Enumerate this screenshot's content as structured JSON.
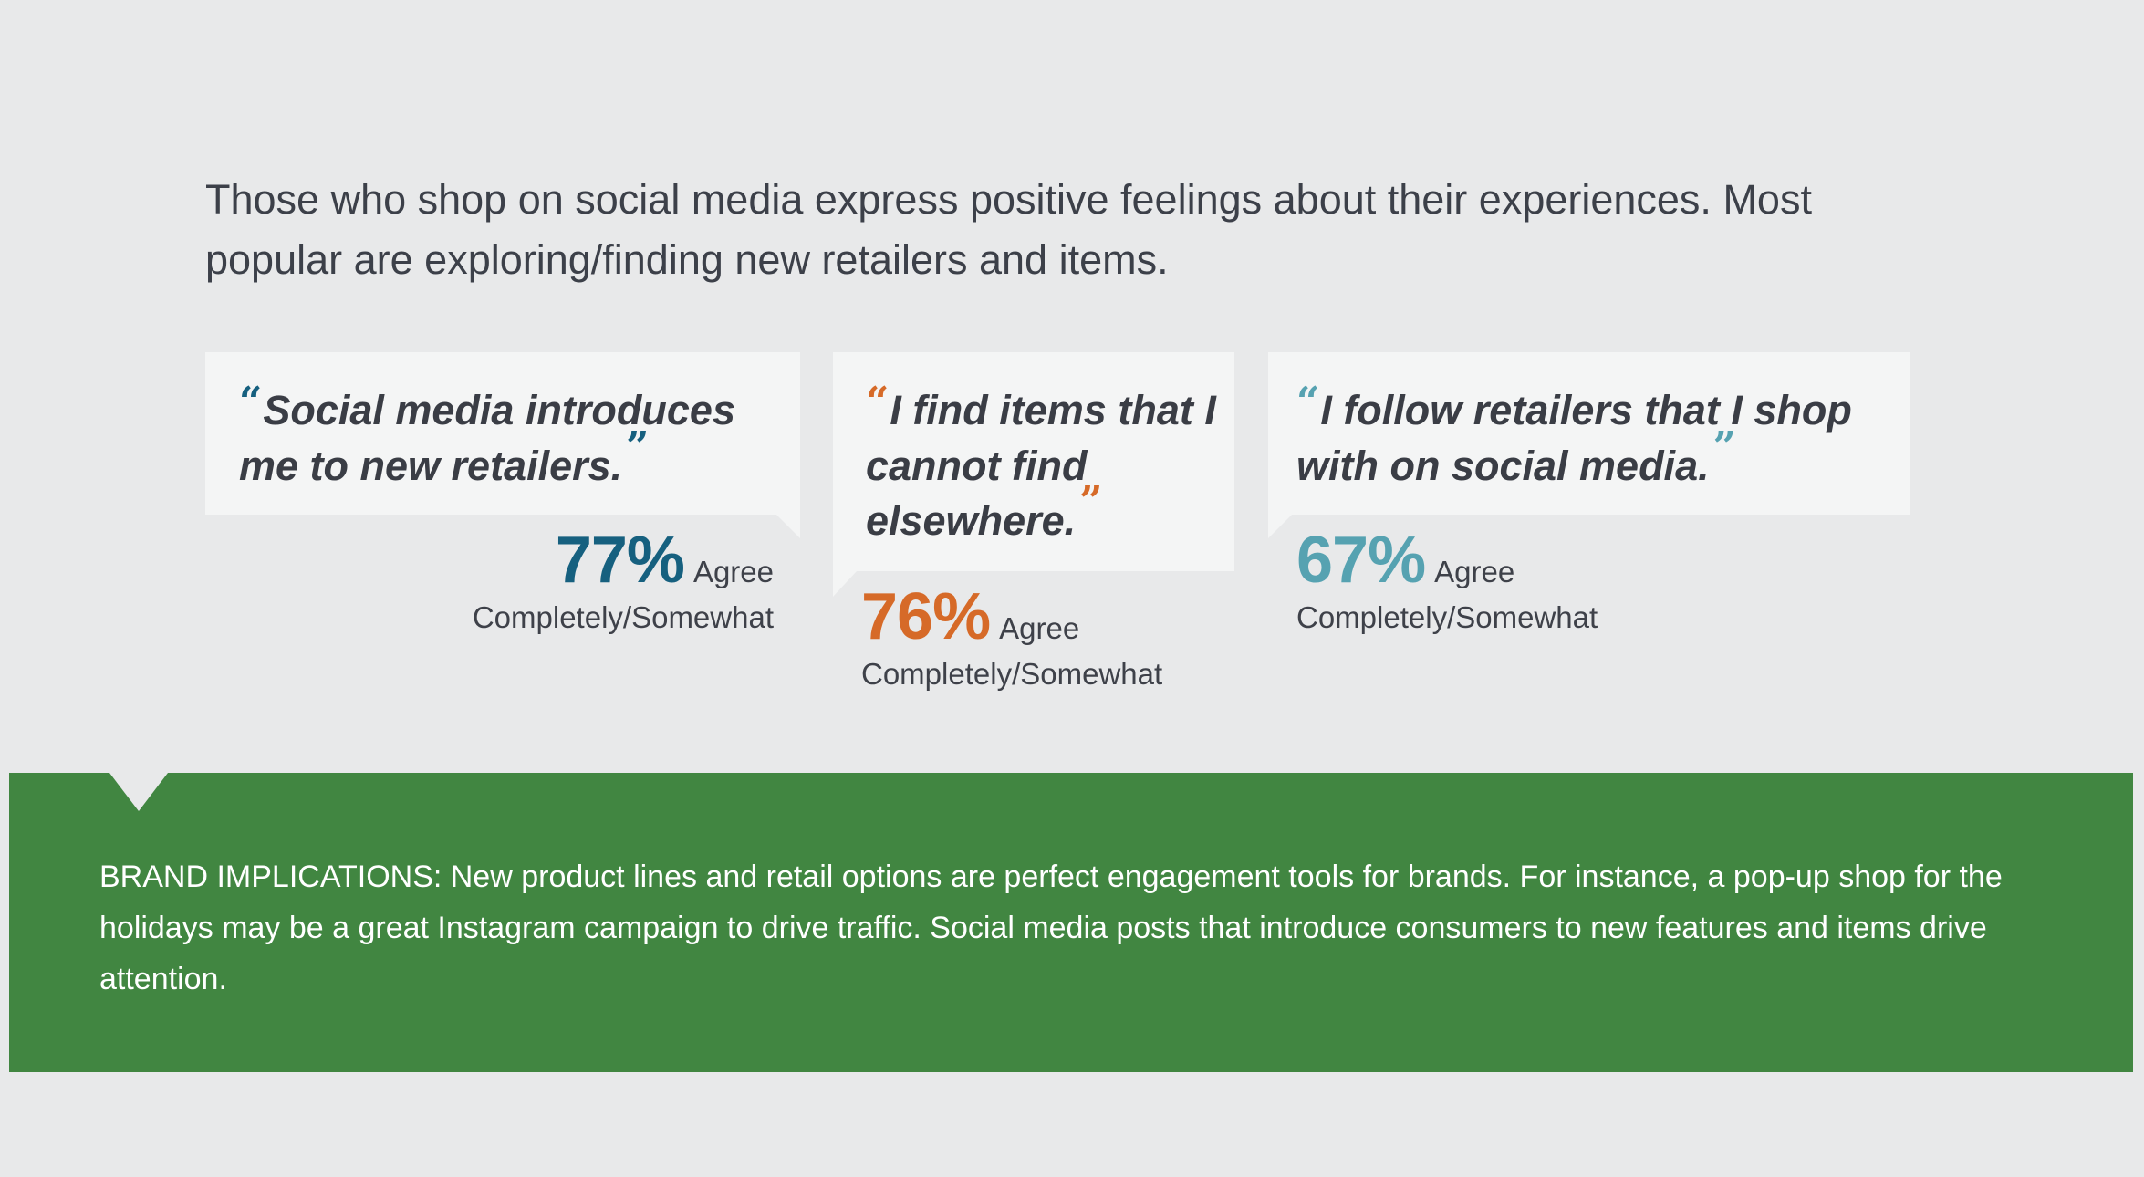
{
  "intro": {
    "text": "Those who shop on social media express positive feelings about their experiences. Most popular are exploring/finding new retailers and items."
  },
  "cards": [
    {
      "quote": "Social media introduces me to new retailers.",
      "percent": "77%",
      "agree_label": "Agree",
      "agree_rest": "Completely/Somewhat",
      "accent_color": "#16607f"
    },
    {
      "quote": "I find items that I cannot find elsewhere.",
      "percent": "76%",
      "agree_label": "Agree",
      "agree_rest": "Completely/Somewhat",
      "accent_color": "#d66a28"
    },
    {
      "quote": "I follow retailers that I shop with on social media.",
      "percent": "67%",
      "agree_label": "Agree",
      "agree_rest": "Completely/Somewhat",
      "accent_color": "#56a2b1"
    }
  ],
  "quote_marks": {
    "open": "“",
    "close": "”"
  },
  "banner": {
    "text": "BRAND IMPLICATIONS:  New product lines and retail options are perfect engagement tools for brands. For instance, a pop-up shop for the holidays may be a great Instagram campaign to drive traffic. Social media posts that introduce consumers to new features and items drive attention.",
    "background_color": "#418641"
  },
  "colors": {
    "page_background": "#e8e9ea",
    "card_background": "#f4f5f5",
    "text": "#3a3d45"
  }
}
